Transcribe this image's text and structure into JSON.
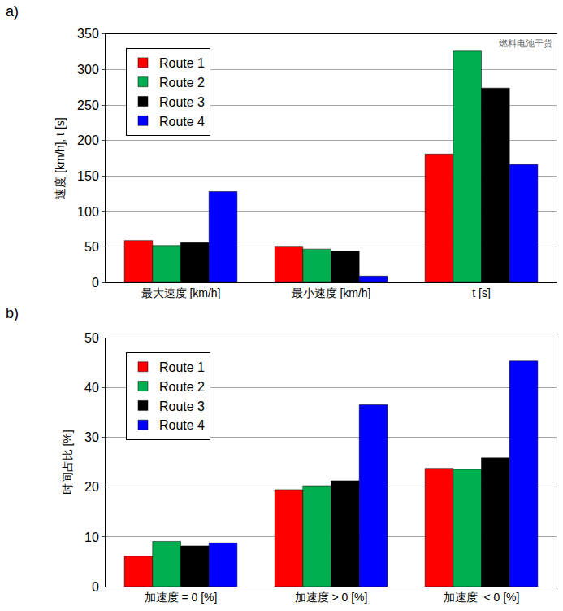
{
  "chart_data": [
    {
      "type": "bar",
      "label": "a)",
      "y_label": "速度 [km/h], t [s]",
      "categories": [
        "最大速度 [km/h]",
        "最小速度 [km/h]",
        "t [s]"
      ],
      "series": [
        {
          "name": "Route 1",
          "color": "#ff0000",
          "values": [
            59,
            51,
            181
          ]
        },
        {
          "name": "Route 2",
          "color": "#00b050",
          "values": [
            52,
            47,
            326
          ]
        },
        {
          "name": "Route 3",
          "color": "#000000",
          "values": [
            56,
            44,
            274
          ]
        },
        {
          "name": "Route 4",
          "color": "#0000ff",
          "values": [
            128,
            9,
            166
          ]
        }
      ],
      "ylim": [
        0,
        350
      ],
      "yticks": [
        0,
        50,
        100,
        150,
        200,
        250,
        300,
        350
      ],
      "grid": true,
      "legend": "upper left"
    },
    {
      "type": "bar",
      "label": "b)",
      "y_label": "时间占比 [%]",
      "categories": [
        "加速度 = 0 [%]",
        "加速度 > 0 [%]",
        "加速度  < 0 [%]"
      ],
      "series": [
        {
          "name": "Route 1",
          "color": "#ff0000",
          "values": [
            6.1,
            19.5,
            23.8
          ]
        },
        {
          "name": "Route 2",
          "color": "#00b050",
          "values": [
            9.1,
            20.3,
            23.6
          ]
        },
        {
          "name": "Route 3",
          "color": "#000000",
          "values": [
            8.2,
            21.3,
            25.9
          ]
        },
        {
          "name": "Route 4",
          "color": "#0000ff",
          "values": [
            8.8,
            36.6,
            45.4
          ]
        }
      ],
      "ylim": [
        0,
        50
      ],
      "yticks": [
        0,
        10,
        20,
        30,
        40,
        50
      ],
      "grid": true,
      "legend": "upper left"
    }
  ],
  "watermark": "燃料电池干货"
}
